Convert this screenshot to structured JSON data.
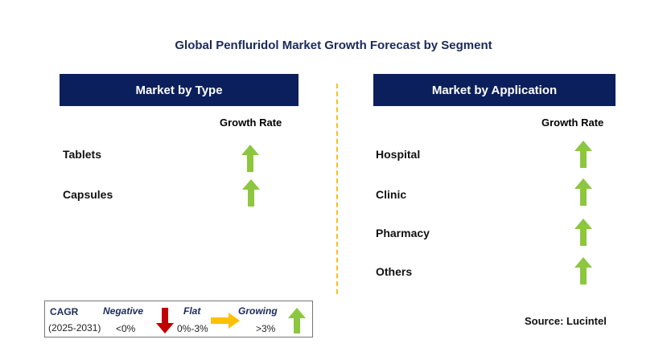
{
  "title": "Global Penfluridol Market  Growth Forecast by Segment",
  "left_panel": {
    "header": "Market by Type",
    "column_header": "Growth Rate",
    "items": [
      {
        "label": "Tablets",
        "trend": "growing"
      },
      {
        "label": "Capsules",
        "trend": "growing"
      }
    ]
  },
  "right_panel": {
    "header": "Market by Application",
    "column_header": "Growth Rate",
    "items": [
      {
        "label": "Hospital",
        "trend": "growing"
      },
      {
        "label": "Clinic",
        "trend": "growing"
      },
      {
        "label": "Pharmacy",
        "trend": "growing"
      },
      {
        "label": "Others",
        "trend": "growing"
      }
    ]
  },
  "legend": {
    "cagr_label": "CAGR",
    "period": "(2025-2031)",
    "negative_label": "Negative",
    "negative_value": "<0%",
    "flat_label": "Flat",
    "flat_value": "0%-3%",
    "growing_label": "Growing",
    "growing_value": ">3%"
  },
  "source": "Source: Lucintel",
  "colors": {
    "header_bg": "#0b1f5c",
    "growing": "#8dc63f",
    "negative": "#c00000",
    "flat": "#ffc000",
    "divider": "#f2c01e"
  }
}
